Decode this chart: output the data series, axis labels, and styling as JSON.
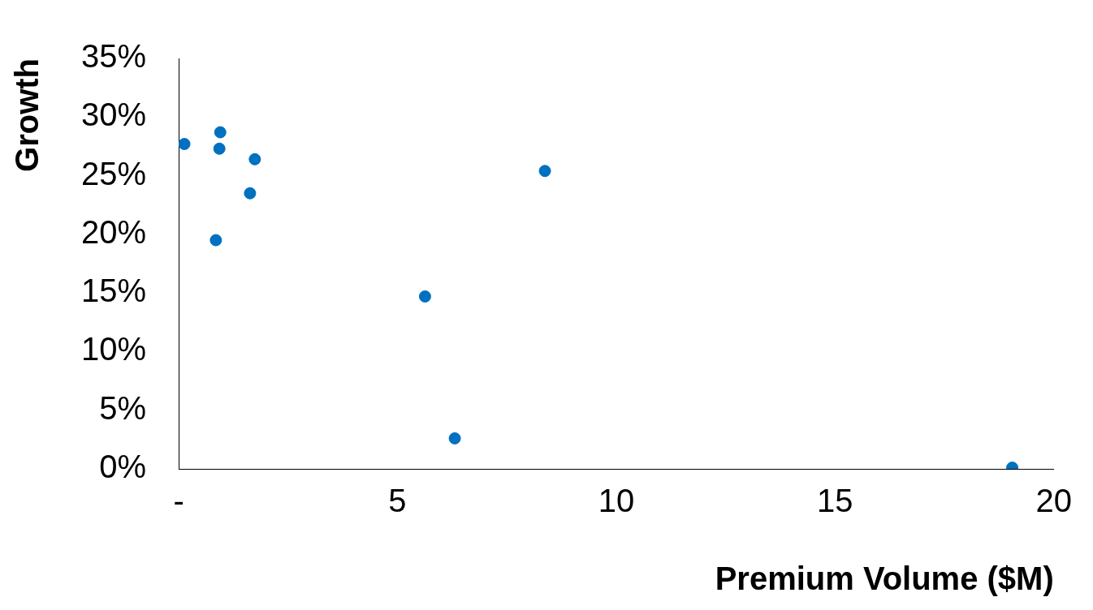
{
  "chart_data": {
    "type": "scatter",
    "xlabel": "Premium Volume ($M)",
    "ylabel": "Growth",
    "x": [
      0.13,
      0.95,
      0.93,
      1.74,
      1.63,
      0.85,
      8.37,
      5.63,
      6.31,
      19.05
    ],
    "series": [
      {
        "color": "#0070c0",
        "values": [
          27.7,
          28.7,
          27.3,
          26.4,
          23.5,
          19.5,
          25.4,
          14.7,
          2.6,
          0.1
        ]
      }
    ],
    "xlim": [
      0,
      20
    ],
    "xticks": [
      {
        "value": 0,
        "label": "-"
      },
      5,
      10,
      15,
      20
    ],
    "ylim": [
      0,
      35
    ],
    "yticks": [
      {
        "value": 0,
        "label": "0%"
      },
      {
        "value": 5,
        "label": "5%"
      },
      {
        "value": 10,
        "label": "10%"
      },
      {
        "value": 15,
        "label": "15%"
      },
      {
        "value": 20,
        "label": "20%"
      },
      {
        "value": 25,
        "label": "25%"
      },
      {
        "value": 30,
        "label": "30%"
      },
      {
        "value": 35,
        "label": "35%"
      }
    ],
    "grid": false,
    "legend": false,
    "marker": "circle"
  }
}
